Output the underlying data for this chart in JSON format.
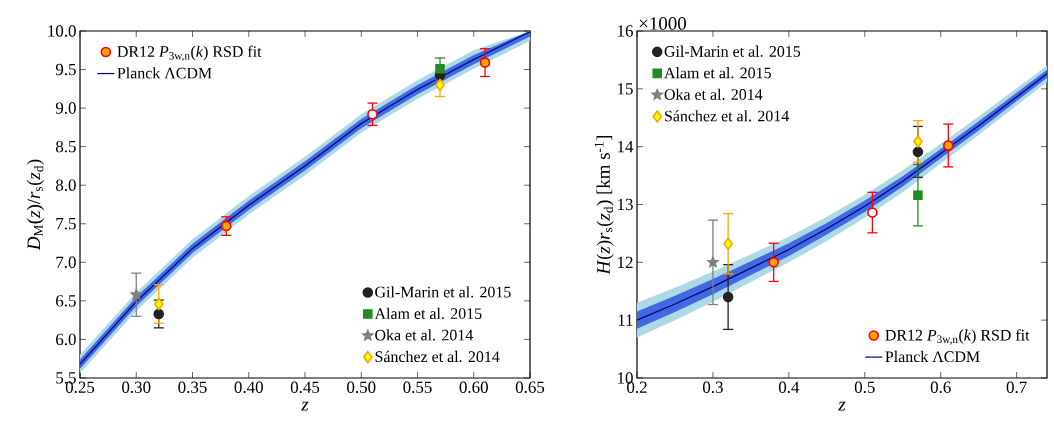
{
  "chart_data": [
    {
      "type": "scatter",
      "xlabel": "*z*",
      "ylabel": "*D*$_{M}$(*z*)/*r*$_{s}$(*z*$_{d}$)",
      "xlim": [
        0.25,
        0.65
      ],
      "ylim": [
        5.5,
        10.0
      ],
      "xticks": [
        0.25,
        {
          "value": 0.3,
          "label": "0.30"
        },
        0.35,
        {
          "value": 0.4,
          "label": "0.40"
        },
        0.45,
        {
          "value": 0.5,
          "label": "0.50"
        },
        0.55,
        {
          "value": 0.6,
          "label": "0.60"
        },
        0.65
      ],
      "yticks": [
        5.5,
        {
          "value": 6.0,
          "label": "6.0"
        },
        6.5,
        {
          "value": 7.0,
          "label": "7.0"
        },
        7.5,
        {
          "value": 8.0,
          "label": "8.0"
        },
        8.5,
        {
          "value": 9.0,
          "label": "9.0"
        },
        9.5,
        {
          "value": 10.0,
          "label": "10.0"
        }
      ],
      "legend": "top left",
      "series": [
        {
          "type": "line",
          "color": "#add8e6",
          "x": [
            0.25,
            0.3,
            0.35,
            0.4,
            0.45,
            0.5,
            0.55,
            0.6,
            0.65
          ],
          "values": [
            null,
            null,
            null,
            null,
            null,
            null,
            null,
            null,
            null
          ],
          "lower": [
            5.56,
            6.37,
            7.06,
            7.62,
            8.13,
            8.68,
            9.12,
            9.51,
            9.87
          ],
          "upper": [
            5.8,
            6.61,
            7.3,
            7.86,
            8.37,
            8.92,
            9.36,
            9.75,
            10.0
          ]
        },
        {
          "type": "line",
          "color": "#4169e1",
          "x": [
            0.25,
            0.3,
            0.35,
            0.4,
            0.45,
            0.5,
            0.55,
            0.6,
            0.65
          ],
          "values": [
            null,
            null,
            null,
            null,
            null,
            null,
            null,
            null,
            null
          ],
          "lower": [
            5.62,
            6.43,
            7.12,
            7.68,
            8.19,
            8.74,
            9.18,
            9.57,
            9.93
          ],
          "upper": [
            5.74,
            6.55,
            7.24,
            7.8,
            8.31,
            8.86,
            9.3,
            9.69,
            10.0
          ]
        },
        {
          "type": "line",
          "name": "Planck ΛCDM",
          "color": "#000080",
          "x": [
            0.25,
            0.3,
            0.35,
            0.4,
            0.45,
            0.5,
            0.55,
            0.6,
            0.65
          ],
          "values": [
            5.68,
            6.49,
            7.18,
            7.74,
            8.25,
            8.8,
            9.24,
            9.63,
            9.99
          ]
        },
        {
          "name": "Gil-Marin et al. 2015",
          "color": "#222222",
          "marker": "circle",
          "x": [
            0.32,
            0.57
          ],
          "values": [
            6.33,
            9.43
          ],
          "errors": [
            0.18,
            null
          ]
        },
        {
          "name": "Alam et al. 2015",
          "color": "#228b22",
          "marker": "square",
          "x": [
            0.57
          ],
          "values": [
            9.51
          ],
          "errors": [
            0.14
          ]
        },
        {
          "name": "Oka et al. 2014",
          "color": "#808080",
          "marker": "star",
          "x": [
            0.3
          ],
          "values": [
            6.58
          ],
          "errors": [
            0.28
          ]
        },
        {
          "name": "Sánchez et al. 2014",
          "color": "#ffa500",
          "colors": [
            "#ffff00",
            "#ffff00"
          ],
          "marker": "diamond",
          "x": [
            0.32,
            0.57
          ],
          "values": [
            6.46,
            9.3
          ],
          "errors": [
            0.25,
            0.15
          ]
        },
        {
          "name": "DR12 *P*$_{3w,n}$(*k*) RSD fit",
          "color": "#ff0000",
          "colors": [
            "#ffa500",
            "#ffffff",
            "#ffa500"
          ],
          "marker": "circle",
          "x": [
            0.38,
            0.51,
            0.61
          ],
          "values": [
            7.47,
            8.92,
            9.59
          ],
          "errors": [
            0.12,
            0.145,
            0.18
          ]
        }
      ]
    },
    {
      "type": "scatter",
      "xlabel": "*z*",
      "ylabel": "*H*(*z*)*r*$_{s}$(*z*$_{d}$) [km s$^{-1}$]",
      "annotations": [
        "×1000"
      ],
      "xlim": [
        0.2,
        0.74
      ],
      "ylim": [
        10,
        16
      ],
      "xticks": [
        0.2,
        0.3,
        0.4,
        0.5,
        0.6,
        0.7
      ],
      "yticks": [
        10,
        11,
        12,
        13,
        14,
        15,
        16
      ],
      "legend": "top left",
      "series": [
        {
          "type": "line",
          "color": "#add8e6",
          "x": [
            0.2,
            0.25,
            0.3,
            0.35,
            0.4,
            0.45,
            0.5,
            0.55,
            0.6,
            0.65,
            0.7,
            0.74
          ],
          "values": [
            null,
            null,
            null,
            null,
            null,
            null,
            null,
            null,
            null,
            null,
            null,
            null
          ],
          "lower": [
            10.7,
            11.0,
            11.32,
            11.66,
            12.0,
            12.37,
            12.77,
            13.21,
            13.71,
            14.2,
            14.71,
            15.12
          ],
          "upper": [
            11.3,
            11.56,
            11.84,
            12.14,
            12.44,
            12.79,
            13.17,
            13.59,
            14.05,
            14.52,
            15.01,
            15.4
          ]
        },
        {
          "type": "line",
          "color": "#4169e1",
          "x": [
            0.2,
            0.25,
            0.3,
            0.35,
            0.4,
            0.45,
            0.5,
            0.55,
            0.6,
            0.65,
            0.7,
            0.74
          ],
          "values": [
            null,
            null,
            null,
            null,
            null,
            null,
            null,
            null,
            null,
            null,
            null,
            null
          ],
          "lower": [
            10.85,
            11.14,
            11.45,
            11.78,
            12.11,
            12.48,
            12.87,
            13.31,
            13.8,
            14.28,
            14.79,
            15.19
          ],
          "upper": [
            11.15,
            11.42,
            11.71,
            12.02,
            12.33,
            12.68,
            13.07,
            13.49,
            13.96,
            14.44,
            14.93,
            15.33
          ]
        },
        {
          "name": "Gil-Marin et al. 2015",
          "color": "#222222",
          "marker": "circle",
          "x": [
            0.32,
            0.57
          ],
          "values": [
            11.4,
            13.91
          ],
          "errors": [
            0.56,
            0.44
          ]
        },
        {
          "name": "Alam et al. 2015",
          "color": "#228b22",
          "marker": "square",
          "x": [
            0.57
          ],
          "values": [
            13.16
          ],
          "errors": [
            0.53
          ]
        },
        {
          "name": "Oka et al. 2014",
          "color": "#808080",
          "marker": "star",
          "x": [
            0.3
          ],
          "values": [
            12.0
          ],
          "errors": [
            0.73
          ]
        },
        {
          "name": "Sánchez et al. 2014",
          "color": "#ffa500",
          "colors": [
            "#ffff00",
            "#ffff00"
          ],
          "marker": "diamond",
          "x": [
            0.32,
            0.57
          ],
          "values": [
            12.32,
            14.09
          ],
          "errors": [
            0.52,
            0.36
          ]
        },
        {
          "name": "DR12 *P*$_{3w,n}$(*k*) RSD fit",
          "color": "#ff0000",
          "colors": [
            "#ffa500",
            "#ffffff",
            "#ffa500"
          ],
          "marker": "circle",
          "x": [
            0.38,
            0.51,
            0.61
          ],
          "values": [
            12.0,
            12.86,
            14.02
          ],
          "errors": [
            0.33,
            0.35,
            0.37
          ]
        },
        {
          "type": "line",
          "name": "Planck ΛCDM",
          "color": "#000080",
          "x": [
            0.2,
            0.25,
            0.3,
            0.35,
            0.4,
            0.45,
            0.5,
            0.55,
            0.6,
            0.65,
            0.7,
            0.74
          ],
          "values": [
            11.0,
            11.28,
            11.58,
            11.9,
            12.22,
            12.58,
            12.97,
            13.4,
            13.88,
            14.36,
            14.86,
            15.26
          ]
        }
      ]
    }
  ]
}
